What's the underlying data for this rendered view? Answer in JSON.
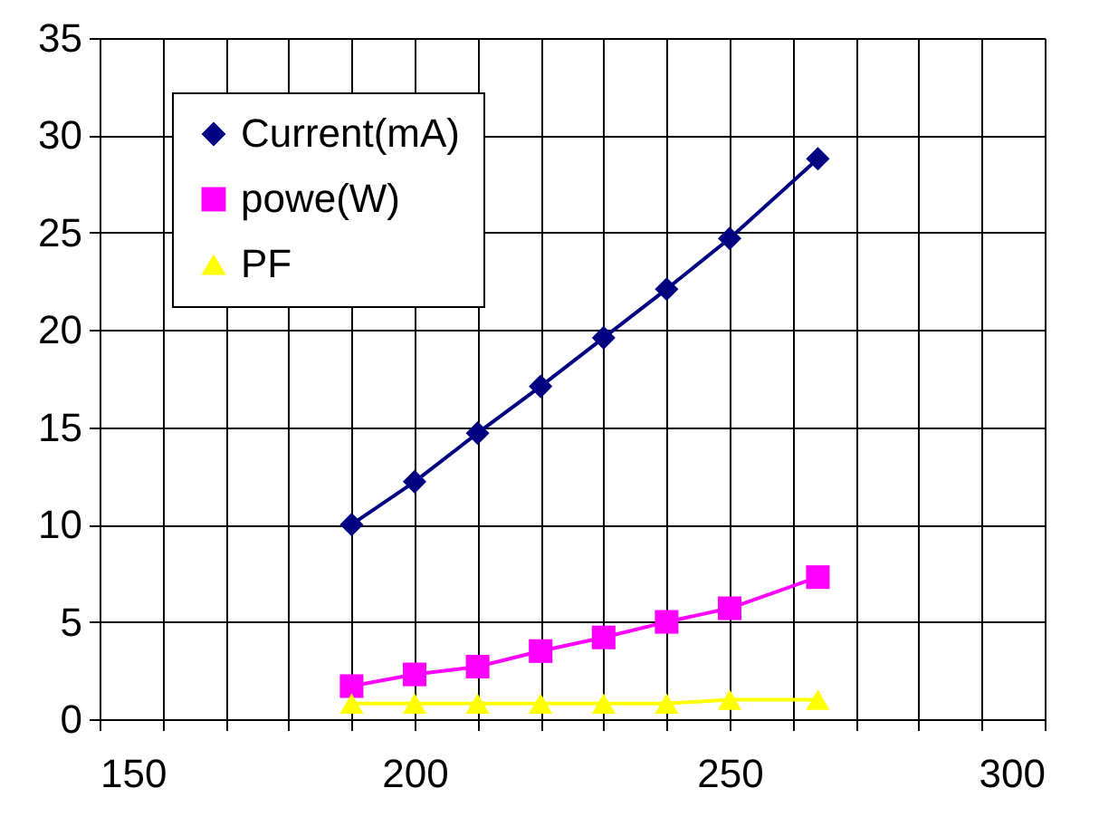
{
  "chart_data": {
    "type": "line",
    "x": [
      190,
      200,
      210,
      220,
      230,
      240,
      250,
      264
    ],
    "series": [
      {
        "name": "Current(mA)",
        "color": "#000080",
        "marker": "diamond",
        "values": [
          10,
          12.2,
          14.7,
          17.1,
          19.6,
          22.1,
          24.7,
          28.8
        ]
      },
      {
        "name": "powe(W)",
        "color": "#ff00ff",
        "marker": "square",
        "values": [
          1.7,
          2.3,
          2.7,
          3.5,
          4.2,
          5.0,
          5.7,
          7.3
        ]
      },
      {
        "name": "PF",
        "color": "#ffff00",
        "marker": "triangle",
        "values": [
          0.8,
          0.8,
          0.8,
          0.8,
          0.8,
          0.8,
          1.0,
          1.0
        ]
      }
    ],
    "xlim": [
      150,
      300
    ],
    "xticks": [
      150,
      {
        "value": 160,
        "label": null
      },
      {
        "value": 170,
        "label": null
      },
      {
        "value": 180,
        "label": null
      },
      {
        "value": 190,
        "label": null
      },
      200,
      {
        "value": 210,
        "label": null
      },
      {
        "value": 220,
        "label": null
      },
      {
        "value": 230,
        "label": null
      },
      {
        "value": 240,
        "label": null
      },
      250,
      {
        "value": 260,
        "label": null
      },
      {
        "value": 270,
        "label": null
      },
      {
        "value": 280,
        "label": null
      },
      {
        "value": 290,
        "label": null
      },
      300
    ],
    "ylim": [
      0,
      35
    ],
    "yticks": [
      0,
      5,
      10,
      15,
      20,
      25,
      30,
      35
    ],
    "grid": true,
    "legend": "top left",
    "line_style": "solid"
  }
}
